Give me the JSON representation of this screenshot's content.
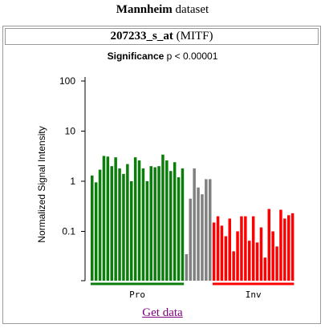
{
  "header": {
    "dataset_name": "Mannheim",
    "dataset_suffix": "dataset"
  },
  "probe": {
    "id": "207233_s_at",
    "gene": "(MITF)"
  },
  "significance": {
    "label": "Significance",
    "value": "p < 0.00001"
  },
  "link": {
    "get_data": "Get data"
  },
  "colors": {
    "pro": "#0a7d0a",
    "mid": "#808080",
    "inv": "#ff0000"
  },
  "chart_data": {
    "type": "bar",
    "ylabel": "Normalized Signal Intensity",
    "yscale": "log",
    "ylim": [
      0.01,
      100
    ],
    "yticks": [
      {
        "value": 100,
        "label": "100"
      },
      {
        "value": 10,
        "label": "10"
      },
      {
        "value": 1,
        "label": "1"
      },
      {
        "value": 0.1,
        "label": "0.1"
      }
    ],
    "groups": [
      {
        "label": "Pro",
        "color": "#0a7d0a",
        "values": [
          1.3,
          0.95,
          1.7,
          3.2,
          3.1,
          2.0,
          3.0,
          1.8,
          1.4,
          2.2,
          1.0,
          3.0,
          2.6,
          1.8,
          1.0,
          2.0,
          1.9,
          2.0,
          3.4,
          2.6,
          1.6,
          2.4,
          1.2,
          1.8
        ]
      },
      {
        "label": "",
        "color": "#808080",
        "values": [
          0.035,
          0.45,
          1.8,
          0.75,
          0.55,
          1.1,
          1.1
        ]
      },
      {
        "label": "Inv",
        "color": "#ff0000",
        "values": [
          0.15,
          0.2,
          0.13,
          0.08,
          0.18,
          0.04,
          0.1,
          0.2,
          0.2,
          0.065,
          0.2,
          0.06,
          0.12,
          0.03,
          0.28,
          0.1,
          0.05,
          0.27,
          0.18,
          0.21,
          0.23
        ]
      }
    ]
  }
}
